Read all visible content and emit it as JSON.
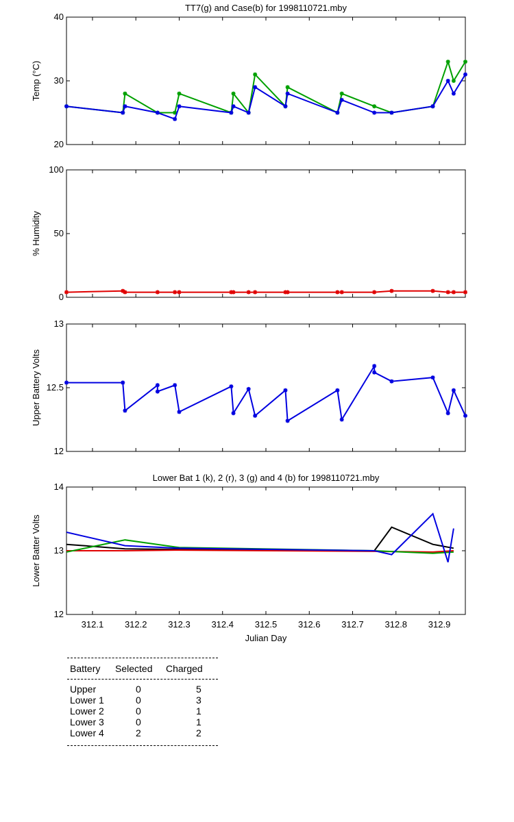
{
  "chart_data": [
    {
      "type": "line",
      "title": "TT7(g) and Case(b) for 1998110721.mby",
      "xlabel": "",
      "ylabel": "Temp (°C)",
      "xlim": [
        312.04,
        312.96
      ],
      "ylim": [
        20,
        40
      ],
      "yticks": [
        20,
        30,
        40
      ],
      "series": [
        {
          "name": "TT7",
          "color": "#00a000",
          "marker": true,
          "x": [
            312.04,
            312.17,
            312.175,
            312.25,
            312.29,
            312.3,
            312.42,
            312.425,
            312.46,
            312.475,
            312.545,
            312.55,
            312.665,
            312.675,
            312.75,
            312.79,
            312.885,
            312.92,
            312.933,
            312.96
          ],
          "y": [
            26,
            25,
            28,
            25,
            25,
            28,
            25,
            28,
            25,
            31,
            26,
            29,
            25,
            28,
            26,
            25,
            26,
            33,
            30,
            33
          ]
        },
        {
          "name": "Case",
          "color": "#0000e0",
          "marker": true,
          "x": [
            312.04,
            312.17,
            312.175,
            312.25,
            312.29,
            312.3,
            312.42,
            312.425,
            312.46,
            312.475,
            312.545,
            312.55,
            312.665,
            312.675,
            312.75,
            312.79,
            312.885,
            312.92,
            312.933,
            312.96
          ],
          "y": [
            26,
            25,
            26,
            25,
            24,
            26,
            25,
            26,
            25,
            29,
            26,
            28,
            25,
            27,
            25,
            25,
            26,
            30,
            28,
            31
          ]
        }
      ]
    },
    {
      "type": "line",
      "title": "",
      "xlabel": "",
      "ylabel": "% Humidity",
      "xlim": [
        312.04,
        312.96
      ],
      "ylim": [
        0,
        100
      ],
      "yticks": [
        0,
        50,
        100
      ],
      "series": [
        {
          "name": "Humidity",
          "color": "#e00000",
          "marker": true,
          "x": [
            312.04,
            312.17,
            312.175,
            312.25,
            312.29,
            312.3,
            312.42,
            312.425,
            312.46,
            312.475,
            312.545,
            312.55,
            312.665,
            312.675,
            312.75,
            312.79,
            312.885,
            312.92,
            312.933,
            312.96
          ],
          "y": [
            4,
            5,
            4,
            4,
            4,
            4,
            4,
            4,
            4,
            4,
            4,
            4,
            4,
            4,
            4,
            5,
            5,
            4,
            4,
            4
          ]
        }
      ]
    },
    {
      "type": "line",
      "title": "",
      "xlabel": "",
      "ylabel": "Upper Battery Volts",
      "xlim": [
        312.04,
        312.96
      ],
      "ylim": [
        12,
        13
      ],
      "yticks": [
        12,
        12.5,
        13
      ],
      "series": [
        {
          "name": "Upper",
          "color": "#0000e0",
          "marker": true,
          "x": [
            312.04,
            312.17,
            312.175,
            312.25,
            312.25,
            312.29,
            312.3,
            312.42,
            312.425,
            312.46,
            312.475,
            312.545,
            312.55,
            312.665,
            312.675,
            312.75,
            312.75,
            312.79,
            312.885,
            312.92,
            312.933,
            312.96
          ],
          "y": [
            12.54,
            12.54,
            12.32,
            12.52,
            12.47,
            12.52,
            12.31,
            12.51,
            12.3,
            12.49,
            12.28,
            12.48,
            12.24,
            12.48,
            12.25,
            12.67,
            12.62,
            12.55,
            12.58,
            12.3,
            12.48,
            12.28
          ]
        }
      ]
    },
    {
      "type": "line",
      "title": "Lower Bat 1 (k), 2 (r), 3 (g) and 4 (b) for 1998110721.mby",
      "xlabel": "Julian Day",
      "ylabel": "Lower Batter Volts",
      "xlim": [
        312.04,
        312.96
      ],
      "ylim": [
        12,
        14
      ],
      "yticks": [
        12,
        13,
        14
      ],
      "xticks": [
        312.1,
        312.2,
        312.3,
        312.4,
        312.5,
        312.6,
        312.7,
        312.8,
        312.9
      ],
      "series": [
        {
          "name": "Lower 1",
          "color": "#000000",
          "marker": false,
          "x": [
            312.04,
            312.175,
            312.3,
            312.75,
            312.79,
            312.885,
            312.933
          ],
          "y": [
            13.1,
            13.03,
            13.02,
            13.0,
            13.37,
            13.1,
            13.04
          ]
        },
        {
          "name": "Lower 2",
          "color": "#e00000",
          "marker": false,
          "x": [
            312.04,
            312.175,
            312.3,
            312.75,
            312.885,
            312.933
          ],
          "y": [
            13.0,
            13.0,
            13.01,
            12.99,
            12.98,
            13.0
          ]
        },
        {
          "name": "Lower 3",
          "color": "#00a000",
          "marker": false,
          "x": [
            312.04,
            312.175,
            312.3,
            312.75,
            312.885,
            312.933
          ],
          "y": [
            12.98,
            13.17,
            13.05,
            13.0,
            12.96,
            12.98
          ]
        },
        {
          "name": "Lower 4",
          "color": "#0000e0",
          "marker": false,
          "x": [
            312.04,
            312.175,
            312.3,
            312.75,
            312.79,
            312.885,
            312.92,
            312.933
          ],
          "y": [
            13.29,
            13.08,
            13.04,
            13.0,
            12.94,
            13.58,
            12.82,
            13.35
          ]
        }
      ]
    }
  ],
  "table": {
    "headers": [
      "Battery",
      "Selected",
      "Charged"
    ],
    "rows": [
      {
        "name": "Upper",
        "selected": "0",
        "charged": "5"
      },
      {
        "name": "Lower 1",
        "selected": "0",
        "charged": "3"
      },
      {
        "name": "Lower 2",
        "selected": "0",
        "charged": "1"
      },
      {
        "name": "Lower 3",
        "selected": "0",
        "charged": "1"
      },
      {
        "name": "Lower 4",
        "selected": "2",
        "charged": "2"
      }
    ]
  }
}
